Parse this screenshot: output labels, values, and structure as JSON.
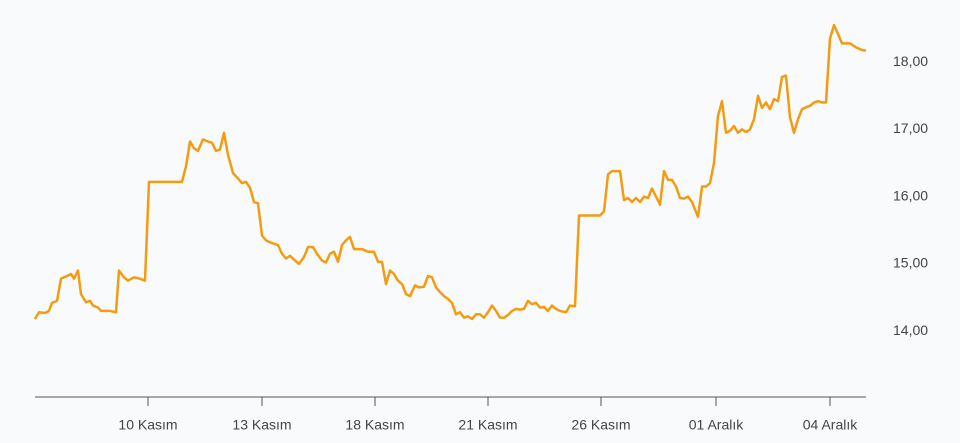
{
  "chart_data": {
    "type": "line",
    "x": [
      35,
      39,
      45,
      49,
      52,
      57,
      61,
      67,
      71,
      74,
      78,
      81,
      86,
      90,
      93,
      98,
      101,
      110,
      116,
      119,
      124,
      128,
      134,
      140,
      145,
      149,
      160,
      170,
      182,
      186,
      190,
      194,
      198,
      203,
      208,
      212,
      216,
      220,
      224,
      228,
      233,
      238,
      242,
      246,
      250,
      254,
      258,
      262,
      266,
      270,
      278,
      282,
      286,
      290,
      295,
      299,
      304,
      308,
      313,
      317,
      322,
      326,
      330,
      334,
      338,
      342,
      346,
      350,
      354,
      362,
      368,
      374,
      378,
      382,
      386,
      390,
      394,
      398,
      402,
      406,
      410,
      415,
      419,
      424,
      428,
      432,
      436,
      440,
      444,
      448,
      452,
      456,
      460,
      464,
      468,
      472,
      476,
      480,
      484,
      488,
      492,
      496,
      500,
      504,
      508,
      512,
      516,
      520,
      524,
      528,
      532,
      536,
      540,
      544,
      548,
      552,
      556,
      560,
      566,
      570,
      575,
      579,
      590,
      600,
      604,
      608,
      612,
      620,
      624,
      628,
      632,
      636,
      640,
      644,
      648,
      652,
      656,
      660,
      664,
      668,
      672,
      676,
      680,
      684,
      688,
      692,
      698,
      702,
      706,
      710,
      714,
      718,
      722,
      726,
      730,
      734,
      738,
      742,
      746,
      750,
      754,
      758,
      762,
      766,
      770,
      774,
      778,
      782,
      786,
      790,
      794,
      798,
      802,
      806,
      810,
      814,
      818,
      822,
      826,
      830,
      834,
      838,
      842,
      850,
      856,
      862,
      866
    ],
    "series": [
      {
        "color": "#f39c12",
        "values": [
          14.18,
          14.28,
          14.27,
          14.3,
          14.42,
          14.45,
          14.78,
          14.82,
          14.85,
          14.78,
          14.9,
          14.55,
          14.43,
          14.45,
          14.38,
          14.35,
          14.3,
          14.3,
          14.28,
          14.9,
          14.8,
          14.75,
          14.8,
          14.78,
          14.75,
          16.22,
          16.22,
          16.22,
          16.22,
          16.45,
          16.82,
          16.72,
          16.68,
          16.85,
          16.82,
          16.8,
          16.68,
          16.7,
          16.95,
          16.62,
          16.35,
          16.27,
          16.2,
          16.22,
          16.13,
          15.92,
          15.9,
          15.42,
          15.35,
          15.32,
          15.28,
          15.15,
          15.08,
          15.12,
          15.05,
          15.0,
          15.1,
          15.25,
          15.25,
          15.15,
          15.05,
          15.02,
          15.15,
          15.18,
          15.03,
          15.28,
          15.35,
          15.4,
          15.22,
          15.22,
          15.18,
          15.18,
          15.03,
          15.03,
          14.7,
          14.9,
          14.85,
          14.75,
          14.7,
          14.55,
          14.52,
          14.68,
          14.65,
          14.66,
          14.82,
          14.8,
          14.65,
          14.58,
          14.52,
          14.48,
          14.42,
          14.25,
          14.28,
          14.2,
          14.22,
          14.18,
          14.25,
          14.25,
          14.2,
          14.28,
          14.38,
          14.3,
          14.2,
          14.2,
          14.24,
          14.3,
          14.33,
          14.32,
          14.33,
          14.45,
          14.4,
          14.42,
          14.35,
          14.36,
          14.3,
          14.38,
          14.33,
          14.3,
          14.28,
          14.38,
          14.37,
          15.72,
          15.72,
          15.72,
          15.78,
          16.33,
          16.38,
          16.38,
          15.95,
          15.98,
          15.92,
          15.98,
          15.92,
          16.0,
          15.98,
          16.12,
          16.0,
          15.88,
          16.38,
          16.25,
          16.25,
          16.15,
          15.98,
          15.97,
          16.0,
          15.92,
          15.7,
          16.15,
          16.15,
          16.2,
          16.5,
          17.2,
          17.42,
          16.95,
          16.98,
          17.05,
          16.95,
          17.0,
          16.96,
          17.0,
          17.15,
          17.5,
          17.32,
          17.4,
          17.3,
          17.45,
          17.42,
          17.78,
          17.8,
          17.18,
          16.95,
          17.15,
          17.3,
          17.33,
          17.35,
          17.4,
          17.42,
          17.4,
          17.4,
          18.35,
          18.55,
          18.42,
          18.28,
          18.28,
          18.22,
          18.18,
          18.17
        ]
      }
    ],
    "xlim": [
      35,
      866
    ],
    "xticks": [
      {
        "value": 148,
        "label": "10 Kasım"
      },
      {
        "value": 262,
        "label": "13 Kasım"
      },
      {
        "value": 375,
        "label": "18 Kasım"
      },
      {
        "value": 488,
        "label": "21 Kasım"
      },
      {
        "value": 601,
        "label": "26 Kasım"
      },
      {
        "value": 716,
        "label": "01 Aralık"
      },
      {
        "value": 830,
        "label": "04 Aralık"
      }
    ],
    "ylim": [
      13.02,
      18.85
    ],
    "yticks": [
      {
        "value": 14,
        "label": "14,00"
      },
      {
        "value": 15,
        "label": "15,00"
      },
      {
        "value": 16,
        "label": "16,00"
      },
      {
        "value": 17,
        "label": "17,00"
      },
      {
        "value": 18,
        "label": "18,00"
      }
    ],
    "grid": false
  }
}
